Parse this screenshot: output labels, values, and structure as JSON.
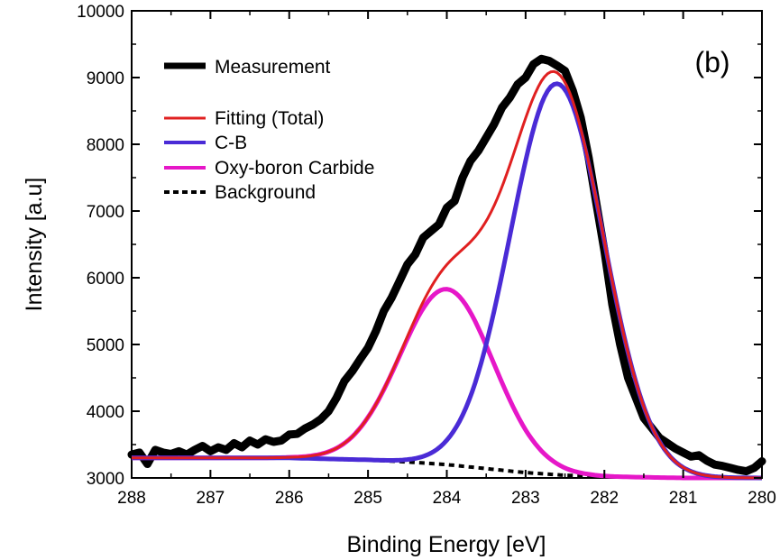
{
  "chart_data": {
    "type": "line",
    "panel_label": "(b)",
    "xlabel": "Binding Energy [eV]",
    "ylabel": "Intensity [a.u]",
    "xlim": [
      288,
      280
    ],
    "x_reversed": true,
    "ylim": [
      3000,
      10000
    ],
    "xticks": [
      "288",
      "287",
      "286",
      "285",
      "284",
      "283",
      "282",
      "281",
      "280"
    ],
    "yticks": [
      "3000",
      "4000",
      "5000",
      "6000",
      "7000",
      "8000",
      "9000",
      "10000"
    ],
    "grid": false,
    "legend_position": "top-left",
    "series": [
      {
        "name": "Measurement",
        "color": "#000000",
        "style": "thick",
        "x": [
          288.0,
          287.9,
          287.8,
          287.7,
          287.6,
          287.5,
          287.4,
          287.3,
          287.2,
          287.1,
          287.0,
          286.9,
          286.8,
          286.7,
          286.6,
          286.5,
          286.4,
          286.3,
          286.2,
          286.1,
          286.0,
          285.9,
          285.8,
          285.7,
          285.6,
          285.5,
          285.4,
          285.3,
          285.2,
          285.1,
          285.0,
          284.9,
          284.8,
          284.7,
          284.6,
          284.5,
          284.4,
          284.3,
          284.2,
          284.1,
          284.0,
          283.9,
          283.8,
          283.7,
          283.6,
          283.5,
          283.4,
          283.3,
          283.2,
          283.1,
          283.0,
          282.9,
          282.8,
          282.7,
          282.6,
          282.5,
          282.4,
          282.3,
          282.2,
          282.1,
          282.0,
          281.9,
          281.8,
          281.7,
          281.6,
          281.5,
          281.4,
          281.3,
          281.2,
          281.1,
          281.0,
          280.9,
          280.8,
          280.7,
          280.6,
          280.5,
          280.4,
          280.3,
          280.2,
          280.1,
          280.0
        ],
        "values": [
          3350,
          3380,
          3210,
          3420,
          3380,
          3360,
          3400,
          3350,
          3420,
          3480,
          3400,
          3460,
          3420,
          3520,
          3460,
          3560,
          3500,
          3580,
          3540,
          3560,
          3650,
          3660,
          3740,
          3800,
          3880,
          4000,
          4200,
          4450,
          4600,
          4780,
          4950,
          5200,
          5500,
          5700,
          5950,
          6200,
          6350,
          6600,
          6700,
          6800,
          7050,
          7150,
          7500,
          7750,
          7900,
          8100,
          8300,
          8550,
          8700,
          8900,
          9000,
          9200,
          9280,
          9250,
          9180,
          9100,
          8800,
          8400,
          7800,
          7100,
          6400,
          5600,
          5000,
          4500,
          4200,
          3900,
          3750,
          3600,
          3520,
          3440,
          3380,
          3320,
          3340,
          3260,
          3200,
          3180,
          3150,
          3120,
          3100,
          3150,
          3250
        ]
      },
      {
        "name": "Fitting (Total)",
        "color": "#e02020",
        "style": "solid"
      },
      {
        "name": "C-B",
        "color": "#4a2bd6",
        "style": "solid",
        "peak_center": 282.6,
        "peak_height": 5860,
        "fwhm": 1.4
      },
      {
        "name": "Oxy-boron Carbide",
        "color": "#e617c8",
        "style": "solid",
        "peak_center": 284.0,
        "peak_height": 2630,
        "fwhm": 1.4
      },
      {
        "name": "Background",
        "color": "#000000",
        "style": "dotted",
        "x": [
          288,
          287,
          286,
          285,
          284.5,
          284,
          283.5,
          283,
          282.5,
          282,
          281.5,
          281,
          280.5,
          280
        ],
        "values": [
          3300,
          3300,
          3300,
          3270,
          3240,
          3200,
          3140,
          3080,
          3040,
          3020,
          3010,
          3000,
          3000,
          3000
        ]
      }
    ]
  }
}
